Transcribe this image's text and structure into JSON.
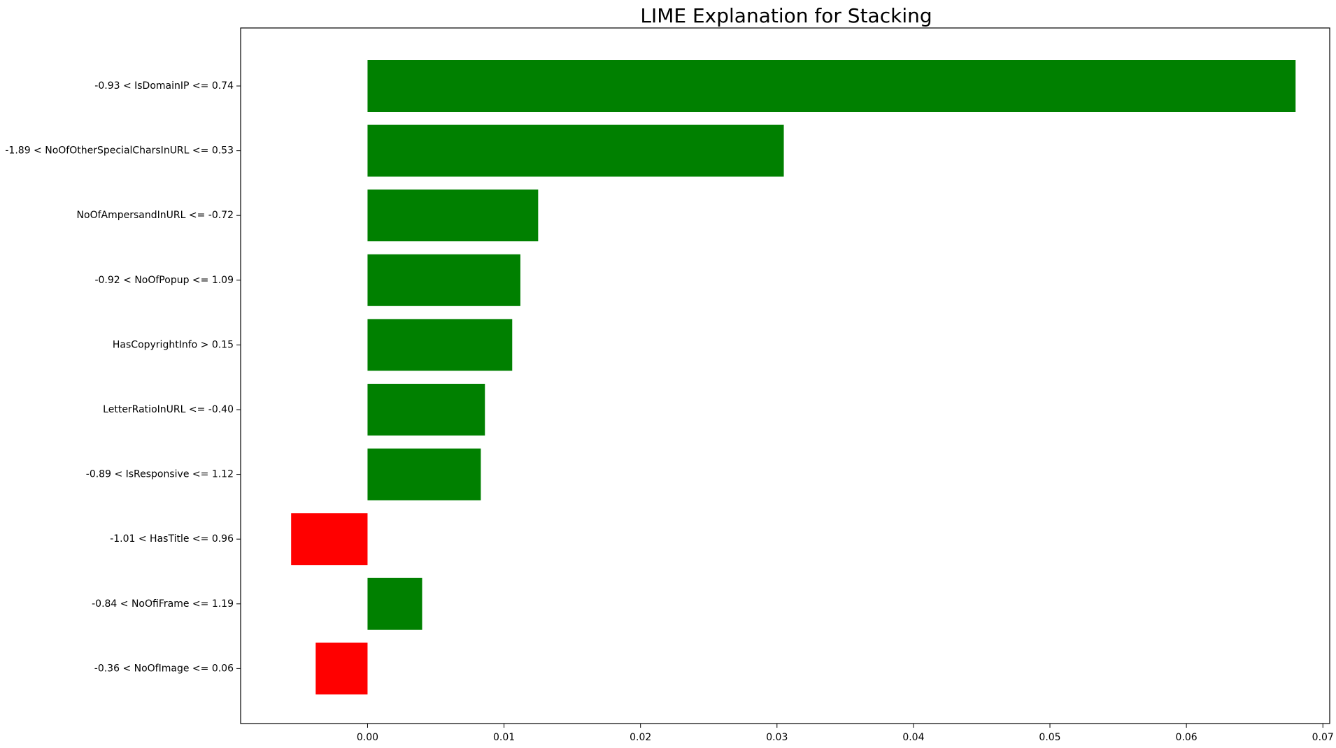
{
  "chart_data": {
    "type": "bar",
    "orientation": "horizontal",
    "title": "LIME Explanation for Stacking",
    "xlabel": "",
    "ylabel": "",
    "xlim": [
      -0.0093,
      0.0705
    ],
    "xticks": [
      0.0,
      0.01,
      0.02,
      0.03,
      0.04,
      0.05,
      0.06,
      0.07
    ],
    "xtick_labels": [
      "0.00",
      "0.01",
      "0.02",
      "0.03",
      "0.04",
      "0.05",
      "0.06",
      "0.07"
    ],
    "grid": false,
    "categories": [
      "-0.93 < IsDomainIP <= 0.74",
      "-1.89 < NoOfOtherSpecialCharsInURL <= 0.53",
      "NoOfAmpersandInURL <= -0.72",
      "-0.92 < NoOfPopup <= 1.09",
      "HasCopyrightInfo > 0.15",
      "LetterRatioInURL <= -0.40",
      "-0.89 < IsResponsive <= 1.12",
      "-1.01 < HasTitle <= 0.96",
      "-0.84 < NoOfiFrame <= 1.19",
      "-0.36 < NoOfImage <= 0.06"
    ],
    "values": [
      0.068,
      0.0305,
      0.0125,
      0.0112,
      0.0106,
      0.0086,
      0.0083,
      -0.0056,
      0.004,
      -0.0038
    ],
    "colors": {
      "positive": "#008000",
      "negative": "#ff0000"
    }
  }
}
